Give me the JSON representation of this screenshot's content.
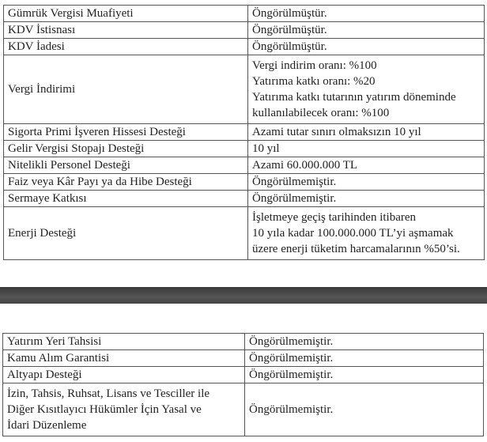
{
  "table1": {
    "rows": [
      {
        "label": "Gümrük Vergisi Muafiyeti",
        "value": [
          "Öngörülmüştür."
        ]
      },
      {
        "label": "KDV İstisnası",
        "value": [
          "Öngörülmüştür."
        ]
      },
      {
        "label": "KDV İadesi",
        "value": [
          "Öngörülmüştür."
        ]
      },
      {
        "label": "Vergi İndirimi",
        "value": [
          "Vergi indirim oranı: %100",
          "Yatırıma katkı oranı: %20",
          "Yatırıma katkı tutarının yatırım döneminde",
          "kullanılabilecek oranı: %100"
        ]
      },
      {
        "label": "Sigorta Primi İşveren Hissesi Desteği",
        "value": [
          "Azami tutar sınırı olmaksızın 10 yıl"
        ]
      },
      {
        "label": "Gelir Vergisi Stopajı Desteği",
        "value": [
          "10 yıl"
        ]
      },
      {
        "label": "Nitelikli Personel Desteği",
        "value": [
          "Azami 60.000.000 TL"
        ]
      },
      {
        "label": "Faiz veya Kâr Payı ya da Hibe Desteği",
        "value": [
          "Öngörülmemiştir."
        ]
      },
      {
        "label": "Sermaye Katkısı",
        "value": [
          "Öngörülmemiştir."
        ]
      },
      {
        "label": "Enerji Desteği",
        "value": [
          "İşletmeye geçiş tarihinden itibaren",
          "10 yıla kadar 100.000.000 TL’yi aşmamak",
          "üzere enerji tüketim harcamalarının %50’si."
        ]
      }
    ]
  },
  "table2": {
    "rows": [
      {
        "label": [
          "Yatırım Yeri Tahsisi"
        ],
        "value": "Öngörülmemiştir."
      },
      {
        "label": [
          "Kamu Alım Garantisi"
        ],
        "value": "Öngörülmemiştir."
      },
      {
        "label": [
          "Altyapı Desteği"
        ],
        "value": "Öngörülmemiştir."
      },
      {
        "label": [
          "İzin, Tahsis, Ruhsat, Lisans ve Tesciller ile",
          "Diğer Kısıtlayıcı Hükümler İçin Yasal ve",
          "İdari Düzenleme"
        ],
        "value": "Öngörülmemiştir."
      }
    ]
  }
}
